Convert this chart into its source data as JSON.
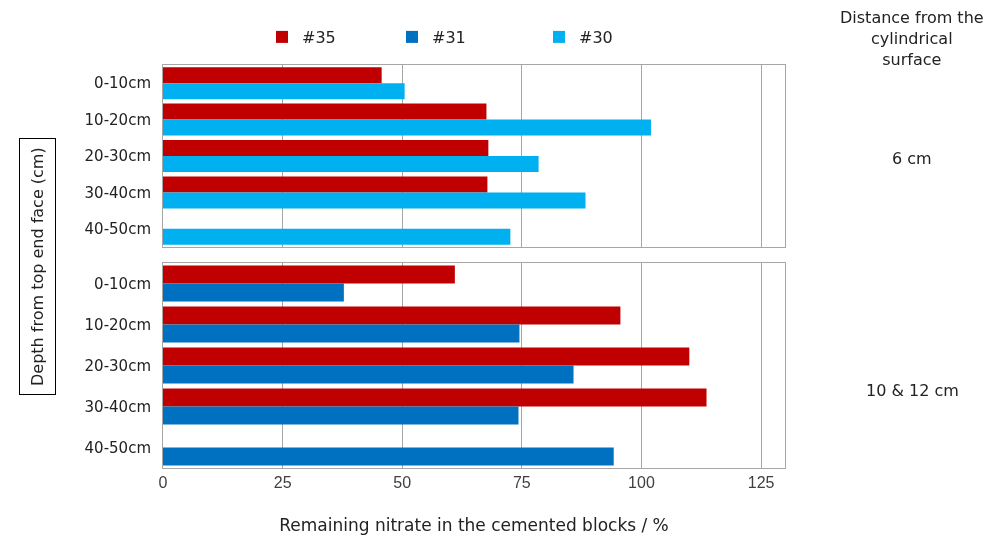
{
  "chart_data": [
    {
      "type": "bar",
      "orientation": "horizontal",
      "categories": [
        "0-10cm",
        "10-20cm",
        "20-30cm",
        "30-40cm",
        "40-50cm"
      ],
      "series": [
        {
          "name": "#35",
          "color": "#c00000",
          "values": [
            45.7,
            67.6,
            68,
            67.8,
            null
          ]
        },
        {
          "name": "#30",
          "color": "#00b0f0",
          "values": [
            50.5,
            102,
            78.5,
            88.3,
            72.6
          ]
        }
      ],
      "ylabel": "Depth from top end face (cm)",
      "xlim": [
        0,
        130
      ],
      "xticks": [
        0,
        25,
        50,
        75,
        100,
        125
      ],
      "tick_labels": "y",
      "grid": "x",
      "legend": "top",
      "annotations": [
        "Distance from the cylindrical surface",
        "6 cm"
      ]
    },
    {
      "type": "bar",
      "orientation": "horizontal",
      "categories": [
        "0-10cm",
        "10-20cm",
        "20-30cm",
        "30-40cm",
        "40-50cm"
      ],
      "series": [
        {
          "name": "#35",
          "color": "#c00000",
          "values": [
            61,
            95.6,
            110,
            113.6,
            null
          ]
        },
        {
          "name": "#31",
          "color": "#0070c0",
          "values": [
            37.8,
            74.5,
            85.8,
            74.3,
            94.2
          ]
        }
      ],
      "xlabel": "Remaining nitrate in the cemented blocks / %",
      "xlim": [
        0,
        130
      ],
      "xticks": [
        0,
        25,
        50,
        75,
        100,
        125
      ],
      "grid": "x",
      "legend": "top",
      "annotations": [
        "10 & 12 cm"
      ]
    }
  ]
}
